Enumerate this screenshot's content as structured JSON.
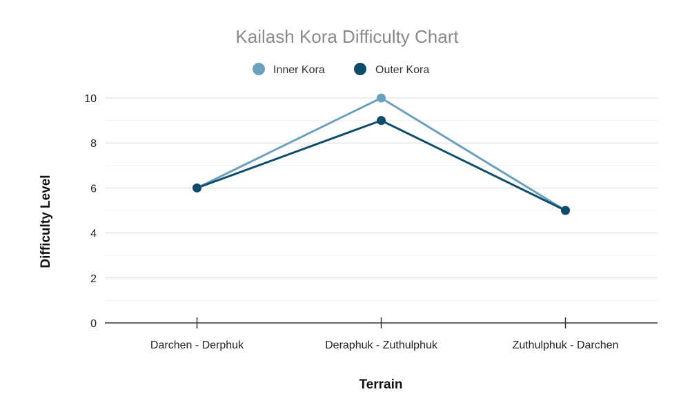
{
  "chart_data": {
    "type": "line",
    "title": "Kailash Kora Difficulty Chart",
    "xlabel": "Terrain",
    "ylabel": "Difficulty Level",
    "categories": [
      "Darchen - Derphuk",
      "Deraphuk - Zuthulphuk",
      "Zuthulphuk - Darchen"
    ],
    "ylim": [
      0,
      10
    ],
    "yticks": [
      0,
      2,
      4,
      6,
      8,
      10
    ],
    "grid": true,
    "legend_position": "top-center",
    "series": [
      {
        "name": "Inner Kora",
        "values": [
          6,
          10,
          5
        ],
        "color": "#6a9fbd"
      },
      {
        "name": "Outer Kora",
        "values": [
          6,
          9,
          5
        ],
        "color": "#0f4c6b"
      }
    ]
  }
}
